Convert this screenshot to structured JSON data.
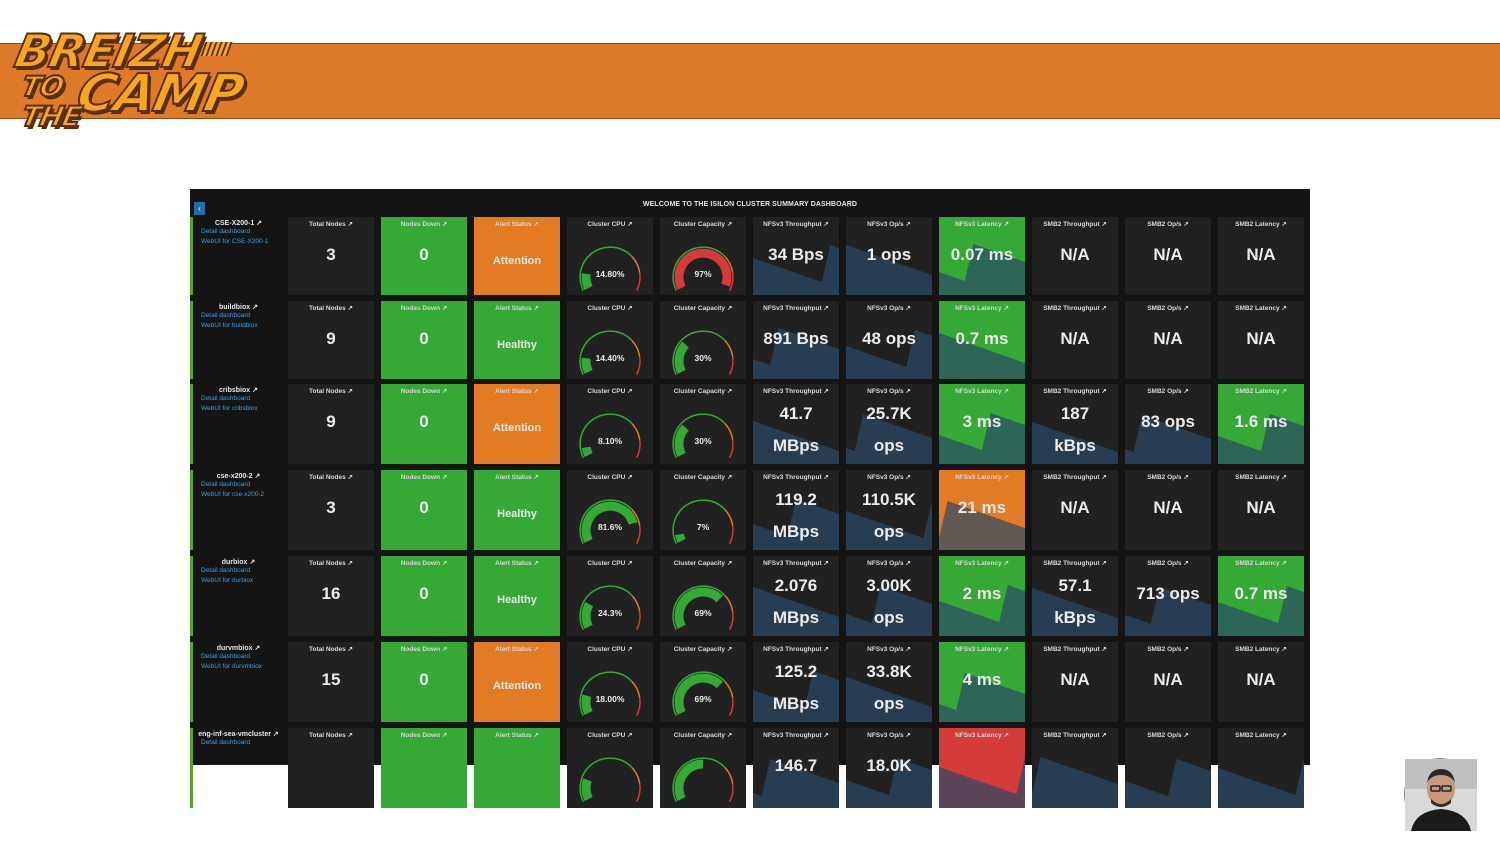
{
  "logo": {
    "line1": "BREIZH",
    "line2": "TO",
    "line3": "CAMP",
    "line4": "THE"
  },
  "dashboard": {
    "title": "WELCOME TO THE ISILON CLUSTER SUMMARY DASHBOARD",
    "back_glyph": "‹",
    "panel_titles": [
      "Total Nodes ↗",
      "Nodes Down ↗",
      "Alert Status ↗",
      "Cluster CPU ↗",
      "Cluster Capacity ↗",
      "NFSv3 Throughput ↗",
      "NFSv3 Op/s ↗",
      "NFSv3 Latency ↗",
      "SMB2 Throughput ↗",
      "SMB2 Op/s ↗",
      "SMB2 Latency ↗"
    ],
    "colors": {
      "green": "#35a835",
      "orange": "#e37b25",
      "red": "#d43b3b",
      "panel": "#212121",
      "link": "#3a9fe6",
      "spark": "#2b4a66"
    },
    "rows": [
      {
        "name": "CSE-X200-1 ↗",
        "links": [
          "Detail dashboard",
          "WebUI for CSE-X200-1"
        ],
        "total_nodes": "3",
        "nodes_down": "0",
        "alert": "Attention",
        "alert_color": "orange",
        "cpu": "14.80%",
        "cpu_frac": 0.148,
        "capacity": "97%",
        "cap_frac": 0.97,
        "nfs_tp": [
          "34 Bps"
        ],
        "nfs_ops": [
          "1 ops"
        ],
        "nfs_lat": "0.07 ms",
        "nfs_lat_color": "green",
        "smb_tp": [
          "N/A"
        ],
        "smb_ops": "N/A",
        "smb_lat": "N/A",
        "smb_lat_color": "dark"
      },
      {
        "name": "buildbiox ↗",
        "links": [
          "Detail dashboard",
          "WebUI for buildbiox"
        ],
        "total_nodes": "9",
        "nodes_down": "0",
        "alert": "Healthy",
        "alert_color": "green",
        "cpu": "14.40%",
        "cpu_frac": 0.144,
        "capacity": "30%",
        "cap_frac": 0.3,
        "nfs_tp": [
          "891 Bps"
        ],
        "nfs_ops": [
          "48 ops"
        ],
        "nfs_lat": "0.7 ms",
        "nfs_lat_color": "green",
        "smb_tp": [
          "N/A"
        ],
        "smb_ops": "N/A",
        "smb_lat": "N/A",
        "smb_lat_color": "dark"
      },
      {
        "name": "cribsbiox ↗",
        "links": [
          "Detail dashboard",
          "WebUI for cribsbiox"
        ],
        "total_nodes": "9",
        "nodes_down": "0",
        "alert": "Attention",
        "alert_color": "orange",
        "cpu": "8.10%",
        "cpu_frac": 0.081,
        "capacity": "30%",
        "cap_frac": 0.3,
        "nfs_tp": [
          "41.7",
          "MBps"
        ],
        "nfs_ops": [
          "25.7K",
          "ops"
        ],
        "nfs_lat": "3 ms",
        "nfs_lat_color": "green",
        "smb_tp": [
          "187",
          "kBps"
        ],
        "smb_ops": "83 ops",
        "smb_lat": "1.6 ms",
        "smb_lat_color": "green"
      },
      {
        "name": "cse-x200-2 ↗",
        "links": [
          "Detail dashboard",
          "WebUI for cse-x200-2"
        ],
        "total_nodes": "3",
        "nodes_down": "0",
        "alert": "Healthy",
        "alert_color": "green",
        "cpu": "81.6%",
        "cpu_frac": 0.816,
        "capacity": "7%",
        "cap_frac": 0.07,
        "nfs_tp": [
          "119.2",
          "MBps"
        ],
        "nfs_ops": [
          "110.5K",
          "ops"
        ],
        "nfs_lat": "21 ms",
        "nfs_lat_color": "orange",
        "smb_tp": [
          "N/A"
        ],
        "smb_ops": "N/A",
        "smb_lat": "N/A",
        "smb_lat_color": "dark"
      },
      {
        "name": "durbiox ↗",
        "links": [
          "Detail dashboard",
          "WebUI for durbiox"
        ],
        "total_nodes": "16",
        "nodes_down": "0",
        "alert": "Healthy",
        "alert_color": "green",
        "cpu": "24.3%",
        "cpu_frac": 0.243,
        "capacity": "69%",
        "cap_frac": 0.69,
        "nfs_tp": [
          "2.076",
          "MBps"
        ],
        "nfs_ops": [
          "3.00K",
          "ops"
        ],
        "nfs_lat": "2 ms",
        "nfs_lat_color": "green",
        "smb_tp": [
          "57.1",
          "kBps"
        ],
        "smb_ops": "713 ops",
        "smb_lat": "0.7 ms",
        "smb_lat_color": "green"
      },
      {
        "name": "durvmbiox ↗",
        "links": [
          "Detail dashboard",
          "WebUI for durvmbiox"
        ],
        "total_nodes": "15",
        "nodes_down": "0",
        "alert": "Attention",
        "alert_color": "orange",
        "cpu": "18.00%",
        "cpu_frac": 0.18,
        "capacity": "69%",
        "cap_frac": 0.69,
        "nfs_tp": [
          "125.2",
          "MBps"
        ],
        "nfs_ops": [
          "33.8K",
          "ops"
        ],
        "nfs_lat": "4 ms",
        "nfs_lat_color": "green",
        "smb_tp": [
          "N/A"
        ],
        "smb_ops": "N/A",
        "smb_lat": "N/A",
        "smb_lat_color": "dark"
      },
      {
        "name": "eng-inf-sea-vmcluster ↗",
        "links": [
          "Detail dashboard"
        ],
        "total_nodes": "",
        "nodes_down": "",
        "alert": "",
        "alert_color": "green",
        "cpu": "",
        "cpu_frac": 0.2,
        "capacity": "",
        "cap_frac": 0.5,
        "nfs_tp": [
          "146.7"
        ],
        "nfs_ops": [
          "18.0K"
        ],
        "nfs_lat": "",
        "nfs_lat_color": "red",
        "smb_tp": [
          ""
        ],
        "smb_ops": "",
        "smb_lat": "",
        "smb_lat_color": "dark"
      }
    ]
  },
  "avatar": {
    "icon": "person-photo-icon"
  }
}
